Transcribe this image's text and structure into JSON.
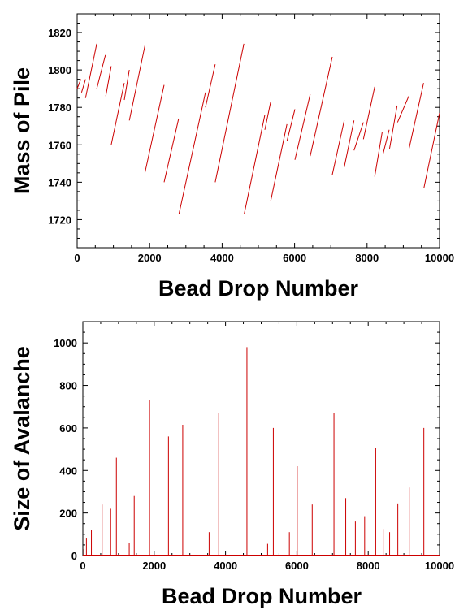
{
  "chart_data": [
    {
      "type": "line",
      "xlabel": "Bead Drop Number",
      "ylabel": "Mass of Pile",
      "xlim": [
        0,
        10000
      ],
      "ylim": [
        1705,
        1830
      ],
      "xticks": [
        0,
        2000,
        4000,
        6000,
        8000,
        10000
      ],
      "yticks": [
        1720,
        1740,
        1760,
        1780,
        1800,
        1820
      ],
      "color": "#cc0000",
      "segments": [
        [
          [
            0,
            1790
          ],
          [
            100,
            1795
          ]
        ],
        [
          [
            120,
            1788
          ],
          [
            230,
            1795
          ]
        ],
        [
          [
            230,
            1785
          ],
          [
            540,
            1814
          ]
        ],
        [
          [
            540,
            1790
          ],
          [
            780,
            1808
          ]
        ],
        [
          [
            790,
            1786
          ],
          [
            940,
            1802
          ]
        ],
        [
          [
            940,
            1760
          ],
          [
            1300,
            1793
          ]
        ],
        [
          [
            1300,
            1784
          ],
          [
            1440,
            1800
          ]
        ],
        [
          [
            1440,
            1773
          ],
          [
            1870,
            1813
          ]
        ],
        [
          [
            1870,
            1745
          ],
          [
            2400,
            1792
          ]
        ],
        [
          [
            2400,
            1740
          ],
          [
            2800,
            1774
          ]
        ],
        [
          [
            2810,
            1723
          ],
          [
            3540,
            1788
          ]
        ],
        [
          [
            3540,
            1780
          ],
          [
            3810,
            1803
          ]
        ],
        [
          [
            3810,
            1740
          ],
          [
            4600,
            1814
          ]
        ],
        [
          [
            4610,
            1723
          ],
          [
            5180,
            1776
          ]
        ],
        [
          [
            5180,
            1768
          ],
          [
            5340,
            1783
          ]
        ],
        [
          [
            5340,
            1730
          ],
          [
            5790,
            1771
          ]
        ],
        [
          [
            5790,
            1762
          ],
          [
            6010,
            1779
          ]
        ],
        [
          [
            6010,
            1752
          ],
          [
            6430,
            1787
          ]
        ],
        [
          [
            6430,
            1754
          ],
          [
            7040,
            1807
          ]
        ],
        [
          [
            7040,
            1744
          ],
          [
            7370,
            1773
          ]
        ],
        [
          [
            7370,
            1748
          ],
          [
            7640,
            1773
          ]
        ],
        [
          [
            7640,
            1757
          ],
          [
            7900,
            1772
          ]
        ],
        [
          [
            7900,
            1763
          ],
          [
            8210,
            1791
          ]
        ],
        [
          [
            8210,
            1743
          ],
          [
            8420,
            1767
          ]
        ],
        [
          [
            8440,
            1755
          ],
          [
            8610,
            1768
          ]
        ],
        [
          [
            8620,
            1758
          ],
          [
            8830,
            1781
          ]
        ],
        [
          [
            8840,
            1772
          ],
          [
            9150,
            1786
          ]
        ],
        [
          [
            9160,
            1758
          ],
          [
            9560,
            1793
          ]
        ],
        [
          [
            9570,
            1737
          ],
          [
            10000,
            1777
          ]
        ]
      ]
    },
    {
      "type": "bar",
      "xlabel": "Bead Drop Number",
      "ylabel": "Size of Avalanche",
      "xlim": [
        0,
        10000
      ],
      "ylim": [
        0,
        1100
      ],
      "xticks": [
        0,
        2000,
        4000,
        6000,
        8000,
        10000
      ],
      "yticks": [
        0,
        200,
        400,
        600,
        800,
        1000
      ],
      "color": "#cc0000",
      "x": [
        30,
        100,
        240,
        540,
        780,
        940,
        1300,
        1440,
        1870,
        2400,
        2800,
        3540,
        3810,
        4600,
        5180,
        5340,
        5790,
        6010,
        6430,
        7040,
        7370,
        7640,
        7900,
        8210,
        8420,
        8600,
        8830,
        9150,
        9560
      ],
      "values": [
        30,
        80,
        120,
        240,
        220,
        460,
        60,
        280,
        730,
        560,
        615,
        110,
        670,
        980,
        55,
        600,
        110,
        420,
        240,
        670,
        270,
        160,
        185,
        505,
        125,
        110,
        245,
        320,
        600
      ]
    }
  ]
}
